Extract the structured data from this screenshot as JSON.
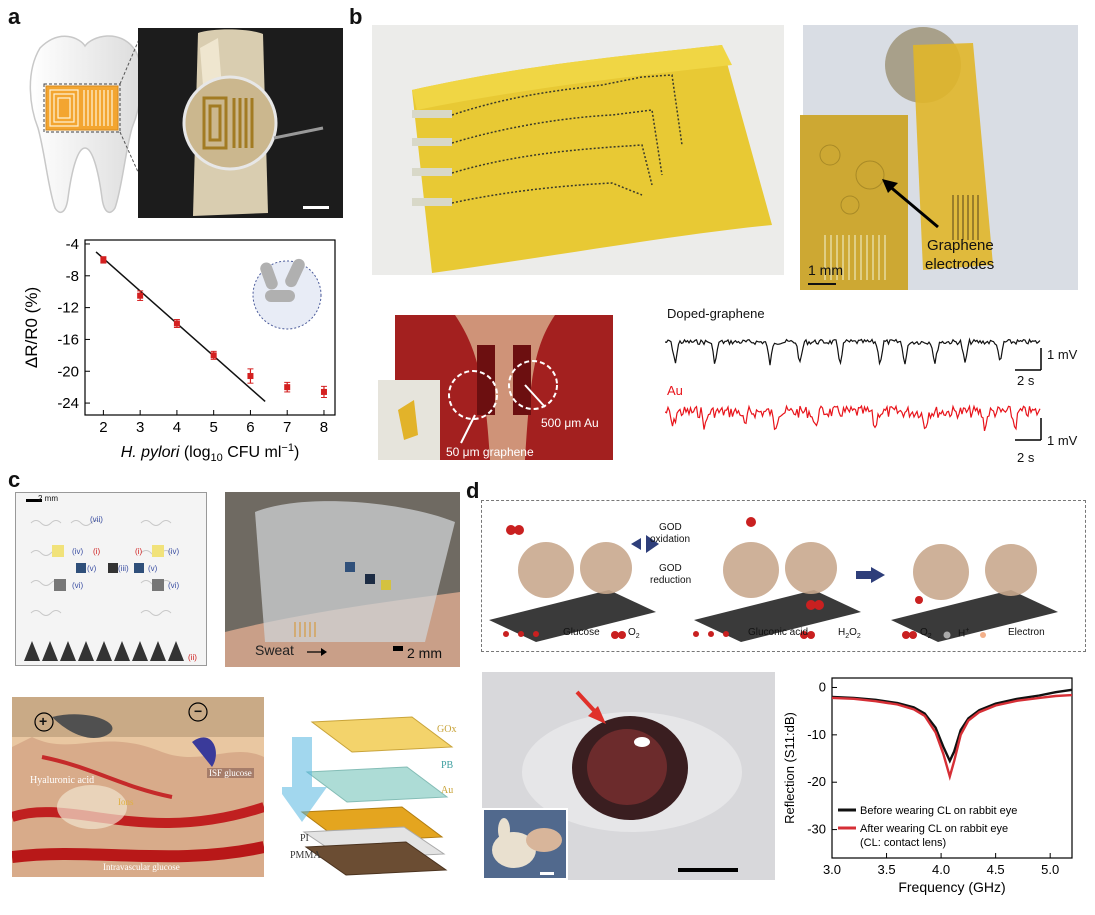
{
  "panels": {
    "a": {
      "letter": "a",
      "scale_bar_label": "",
      "chart_data": {
        "type": "scatter",
        "title": "",
        "xlabel": "H. pylori (log10 CFU ml−1)",
        "xlabel_main": "H. pylori",
        "xlabel_unit_pre": "(log",
        "xlabel_unit_sub": "10",
        "xlabel_unit_mid": " CFU ml",
        "xlabel_unit_sup": "−1",
        "xlabel_unit_post": ")",
        "ylabel": "ΔR/R0 (%)",
        "xlim": [
          1.5,
          8.3
        ],
        "ylim": [
          -25.5,
          -3.5
        ],
        "xticks": [
          2,
          3,
          4,
          5,
          6,
          7,
          8
        ],
        "yticks": [
          -4,
          -8,
          -12,
          -16,
          -20,
          -24
        ],
        "x": [
          2,
          3,
          4,
          5,
          6,
          7,
          8
        ],
        "y": [
          -6.0,
          -10.5,
          -14.0,
          -18.0,
          -20.6,
          -22.0,
          -22.6
        ],
        "yerr": [
          0.4,
          0.6,
          0.5,
          0.5,
          0.9,
          0.6,
          0.7
        ],
        "fit_line": {
          "x": [
            1.8,
            6.4
          ],
          "y": [
            -5.0,
            -23.8
          ]
        },
        "marker_color": "#d42020",
        "line_color": "#111111"
      }
    },
    "b": {
      "letter": "b",
      "graphene_label_1": "Graphene",
      "graphene_label_2": "electrodes",
      "inset_scale": "1 mm",
      "label_500": "500 μm Au",
      "label_50": "50 μm graphene",
      "trace1_label": "Doped-graphene",
      "trace2_label": "Au",
      "scale_mv_1": "1 mV",
      "scale_s_1": "2 s",
      "scale_mv_2": "1 mV",
      "scale_s_2": "2 s",
      "trace1_color": "#111111",
      "trace2_color": "#e8141b"
    },
    "c": {
      "letter": "c",
      "scale_2mm_small": "2 mm",
      "roman": [
        "(vii)",
        "(iv)",
        "(i)",
        "(i)",
        "(iv)",
        "(v)",
        "(iii)",
        "(v)",
        "(vi)",
        "(vi)",
        "(ii)"
      ],
      "sweat_label": "Sweat",
      "scale_2mm": "2 mm",
      "plus": "+",
      "minus": "−",
      "hyaluronic": "Hyaluronic acid",
      "ions": "Ions",
      "isf": "ISF glucose",
      "intravascular": "Intravascular glucose",
      "layers": [
        "GOx",
        "PB",
        "Au",
        "PI",
        "PMMA"
      ]
    },
    "d": {
      "letter": "d",
      "god_oxidation_1": "GOD",
      "god_oxidation_2": "oxidation",
      "god_reduction_1": "GOD",
      "god_reduction_2": "reduction",
      "legend_glucose": "Glucose",
      "legend_o2": "O",
      "legend_o2_sub": "2",
      "legend_gluconic": "Gluconic acid",
      "legend_h2o2": "H",
      "legend_h2o2_sub1": "2",
      "legend_h2o2_mid": "O",
      "legend_h2o2_sub2": "2",
      "legend_o2b": "O",
      "legend_o2b_sub": "2",
      "legend_h": "H",
      "legend_h_sup": "+",
      "legend_electron": "Electron",
      "chart_data": {
        "type": "line",
        "title": "",
        "xlabel": "Frequency (GHz)",
        "ylabel": "Reflection (S11:dB)",
        "xlim": [
          3.0,
          5.2
        ],
        "ylim": [
          -36,
          2
        ],
        "xticks": [
          3.0,
          3.5,
          4.0,
          4.5,
          5.0
        ],
        "yticks": [
          0,
          -10,
          -20,
          -30
        ],
        "series": [
          {
            "name": "Before wearing CL on rabbit eye",
            "color": "#111111",
            "x": [
              3.0,
              3.2,
              3.4,
              3.6,
              3.75,
              3.85,
              3.95,
              4.02,
              4.08,
              4.12,
              4.18,
              4.25,
              4.35,
              4.5,
              4.7,
              4.9,
              5.05,
              5.2
            ],
            "y": [
              -2.0,
              -2.2,
              -2.6,
              -3.3,
              -4.2,
              -5.5,
              -8.5,
              -12.5,
              -15.5,
              -13.5,
              -9.0,
              -6.5,
              -4.8,
              -3.4,
              -2.4,
              -1.7,
              -1.0,
              -0.5
            ]
          },
          {
            "name": "After wearing CL on rabbit eye",
            "name2": "(CL: contact lens)",
            "color": "#d62f36",
            "x": [
              3.0,
              3.2,
              3.4,
              3.6,
              3.75,
              3.85,
              3.95,
              4.02,
              4.08,
              4.12,
              4.18,
              4.25,
              4.35,
              4.5,
              4.7,
              4.9,
              5.05,
              5.2
            ],
            "y": [
              -2.2,
              -2.4,
              -2.9,
              -3.6,
              -4.6,
              -6.0,
              -9.5,
              -14.0,
              -18.8,
              -15.5,
              -10.0,
              -7.0,
              -5.2,
              -3.8,
              -2.8,
              -2.2,
              -1.8,
              -1.6
            ]
          }
        ]
      }
    }
  }
}
